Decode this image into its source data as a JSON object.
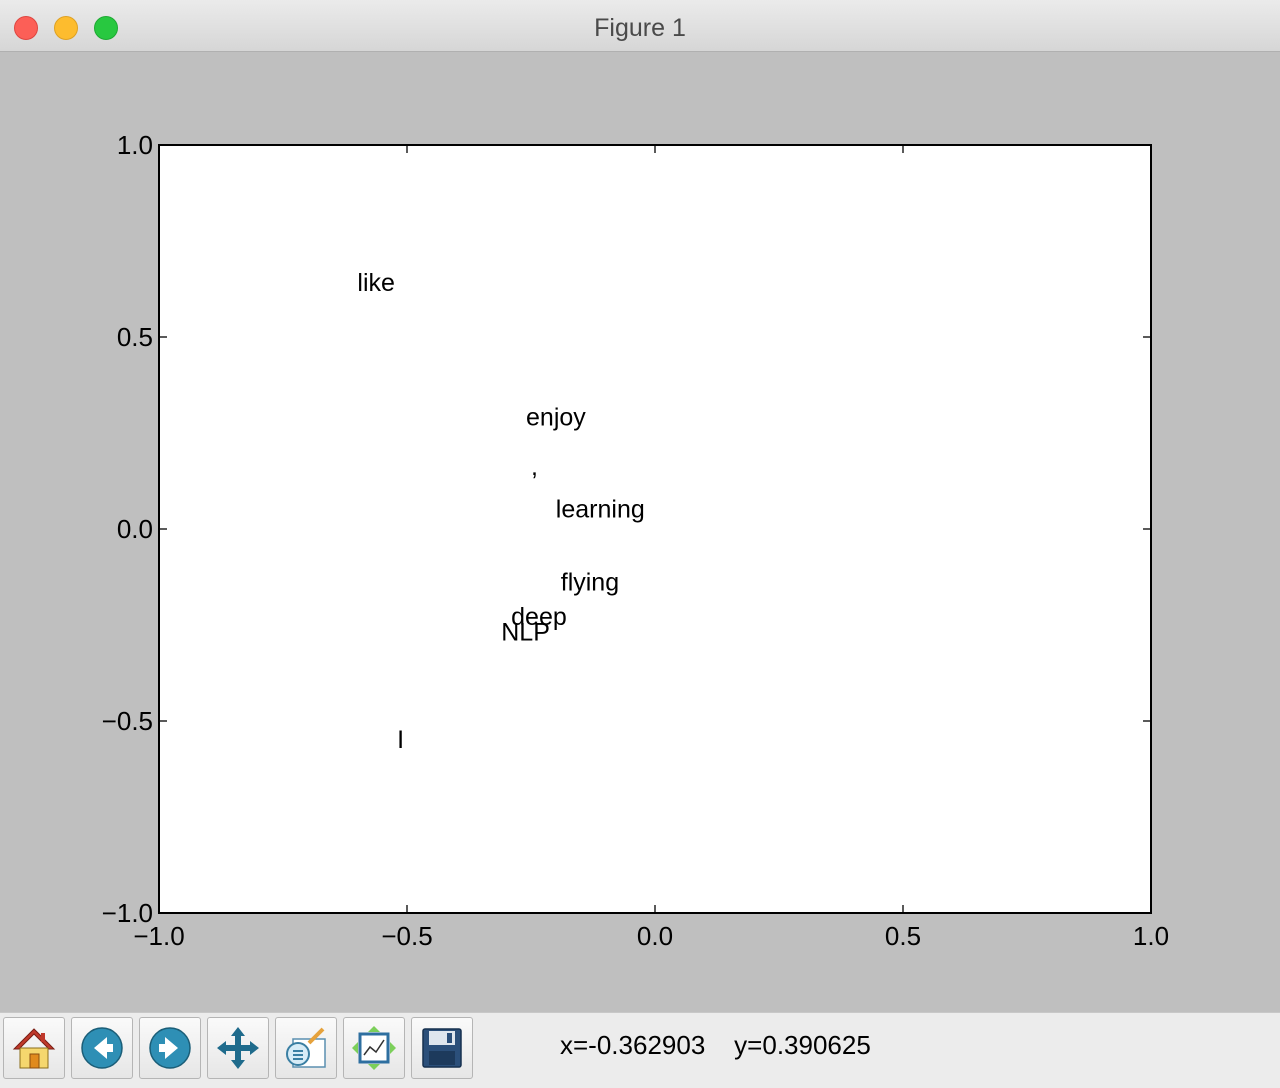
{
  "window": {
    "title": "Figure 1"
  },
  "toolbar": {
    "tools": [
      {
        "name": "home",
        "icon": "home-icon"
      },
      {
        "name": "back",
        "icon": "arrow-left-icon"
      },
      {
        "name": "forward",
        "icon": "arrow-right-icon"
      },
      {
        "name": "pan",
        "icon": "move-icon"
      },
      {
        "name": "zoom",
        "icon": "zoom-rect-icon"
      },
      {
        "name": "subplots",
        "icon": "configure-subplots-icon"
      },
      {
        "name": "save",
        "icon": "floppy-disk-icon"
      }
    ],
    "coordinates": "x=-0.362903    y=0.390625"
  },
  "chart_data": {
    "type": "scatter",
    "title": "",
    "xlabel": "",
    "ylabel": "",
    "xlim": [
      -1.0,
      1.0
    ],
    "ylim": [
      -1.0,
      1.0
    ],
    "xticks": [
      "−1.0",
      "−0.5",
      "0.0",
      "0.5",
      "1.0"
    ],
    "yticks": [
      "1.0",
      "0.5",
      "0.0",
      "−0.5",
      "−1.0"
    ],
    "xtick_values": [
      -1.0,
      -0.5,
      0.0,
      0.5,
      1.0
    ],
    "ytick_values": [
      1.0,
      0.5,
      0.0,
      -0.5,
      -1.0
    ],
    "grid": false,
    "points": [
      {
        "label": "like",
        "x": -0.6,
        "y": 0.62
      },
      {
        "label": "enjoy",
        "x": -0.26,
        "y": 0.27
      },
      {
        "label": ",",
        "x": -0.25,
        "y": 0.14
      },
      {
        "label": "learning",
        "x": -0.2,
        "y": 0.03
      },
      {
        "label": "flying",
        "x": -0.19,
        "y": -0.16
      },
      {
        "label": "deep",
        "x": -0.29,
        "y": -0.25
      },
      {
        "label": "NLP",
        "x": -0.31,
        "y": -0.29
      },
      {
        "label": "I",
        "x": -0.52,
        "y": -0.57
      }
    ]
  }
}
